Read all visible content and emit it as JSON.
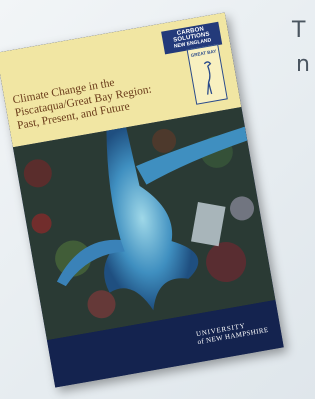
{
  "cover": {
    "title_lines": [
      "Climate Change in the",
      "Piscataqua/Great Bay Region:",
      "Past, Present, and Future"
    ],
    "partner": "CARBON SOLUTIONS",
    "partner_sub": "NEW ENGLAND",
    "logo": "GREAT BAY",
    "university": "UNIVERSITY",
    "university_sub": "of NEW HAMPSHIRE"
  },
  "side_text": [
    "T",
    "n"
  ]
}
